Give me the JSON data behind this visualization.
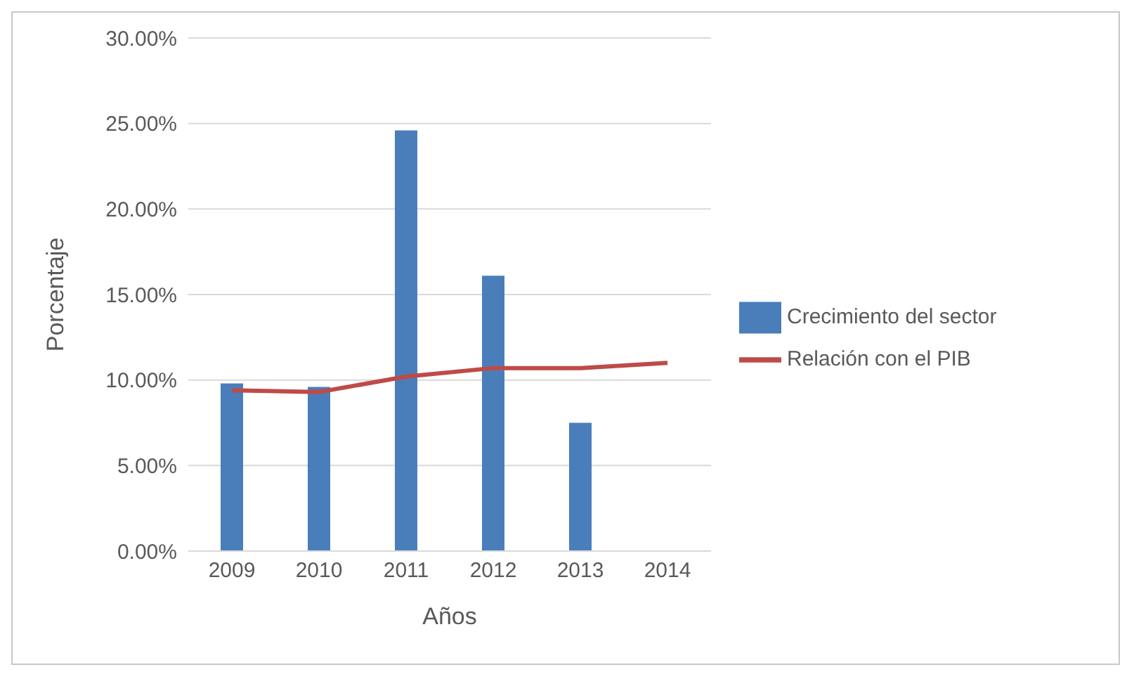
{
  "chart_data": {
    "type": "bar",
    "xlabel": "Años",
    "ylabel": "Porcentaje",
    "categories": [
      "2009",
      "2010",
      "2011",
      "2012",
      "2013",
      "2014"
    ],
    "series": [
      {
        "name": "Crecimiento del sector",
        "color": "#4a7ebb",
        "values": [
          9.8,
          9.6,
          24.6,
          16.1,
          7.5,
          null
        ]
      },
      {
        "name": "Relación con el PIB",
        "type": "line",
        "color": "#be4b48",
        "values": [
          9.4,
          9.3,
          10.2,
          10.7,
          10.7,
          11.0
        ]
      }
    ],
    "ylim": [
      0,
      30
    ],
    "yticks": [
      {
        "value": 0,
        "label": "0.00%"
      },
      {
        "value": 5,
        "label": "5.00%"
      },
      {
        "value": 10,
        "label": "10.00%"
      },
      {
        "value": 15,
        "label": "15.00%"
      },
      {
        "value": 20,
        "label": "20.00%"
      },
      {
        "value": 25,
        "label": "25.00%"
      },
      {
        "value": 30,
        "label": "30.00%"
      }
    ],
    "grid": "y",
    "legend": "right",
    "marker": "none"
  }
}
